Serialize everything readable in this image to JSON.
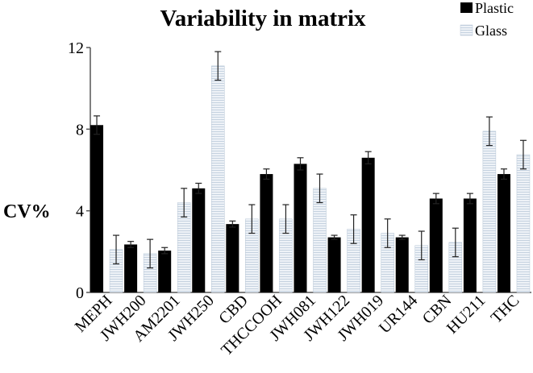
{
  "chart_data": {
    "type": "bar",
    "title": "Variability in matrix",
    "xlabel": "",
    "ylabel": "CV%",
    "ylim": [
      0,
      12
    ],
    "yticks": [
      0,
      4,
      8,
      12
    ],
    "categories": [
      "MEPH",
      "JWH200",
      "AM2201",
      "JWH250",
      "CBD",
      "THCCOOH",
      "JWH081",
      "JWH122",
      "JWH019",
      "UR144",
      "CBN",
      "HU211",
      "THC"
    ],
    "series": [
      {
        "name": "Plastic",
        "color": "#000000",
        "values": [
          8.2,
          2.35,
          2.05,
          5.1,
          3.35,
          5.8,
          6.3,
          2.7,
          6.6,
          2.7,
          4.6,
          4.6,
          5.8
        ],
        "errors": [
          0.45,
          0.15,
          0.15,
          0.25,
          0.15,
          0.25,
          0.3,
          0.1,
          0.3,
          0.1,
          0.25,
          0.25,
          0.25
        ]
      },
      {
        "name": "Glass",
        "color": "#dde6f0",
        "values": [
          2.1,
          1.9,
          4.4,
          11.1,
          3.6,
          3.6,
          5.1,
          3.1,
          2.9,
          2.3,
          2.45,
          7.9,
          6.75
        ],
        "errors": [
          0.7,
          0.7,
          0.7,
          0.7,
          0.7,
          0.7,
          0.7,
          0.7,
          0.7,
          0.7,
          0.7,
          0.7,
          0.7
        ]
      }
    ],
    "legend": "top-right"
  }
}
